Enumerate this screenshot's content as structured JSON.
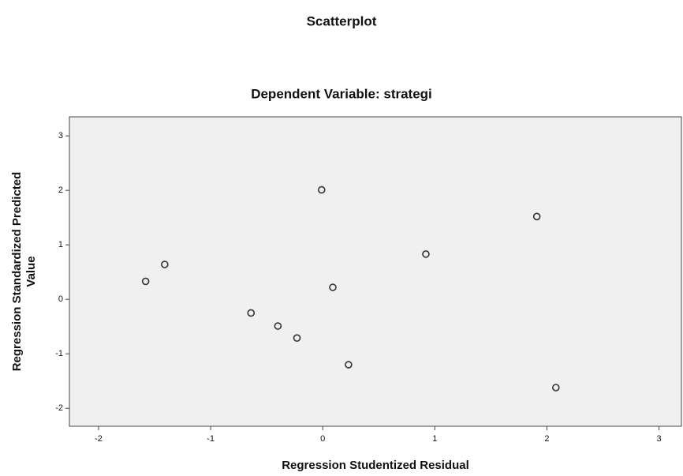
{
  "chart_data": {
    "type": "scatter",
    "title": "Scatterplot",
    "subtitle": "Dependent Variable: strategi",
    "xlabel": "Regression Studentized Residual",
    "ylabel": [
      "Regression Standardized Predicted",
      "Value"
    ],
    "x": [
      -1.58,
      -1.41,
      -0.64,
      -0.4,
      -0.23,
      -0.01,
      0.09,
      0.23,
      0.92,
      1.91,
      2.08
    ],
    "series": [
      {
        "color": "#333333",
        "values": [
          0.33,
          0.64,
          -0.25,
          -0.49,
          -0.71,
          2.01,
          0.22,
          -1.2,
          0.83,
          1.52,
          -1.62
        ]
      }
    ],
    "xlim": [
      -2.26,
      3.2
    ],
    "ylim": [
      -2.33,
      3.35
    ],
    "xticks": [
      -2,
      -1,
      0,
      1,
      2,
      3
    ],
    "yticks": [
      3,
      2,
      1,
      0,
      -1,
      -2
    ],
    "background": "#f0f0f0"
  }
}
